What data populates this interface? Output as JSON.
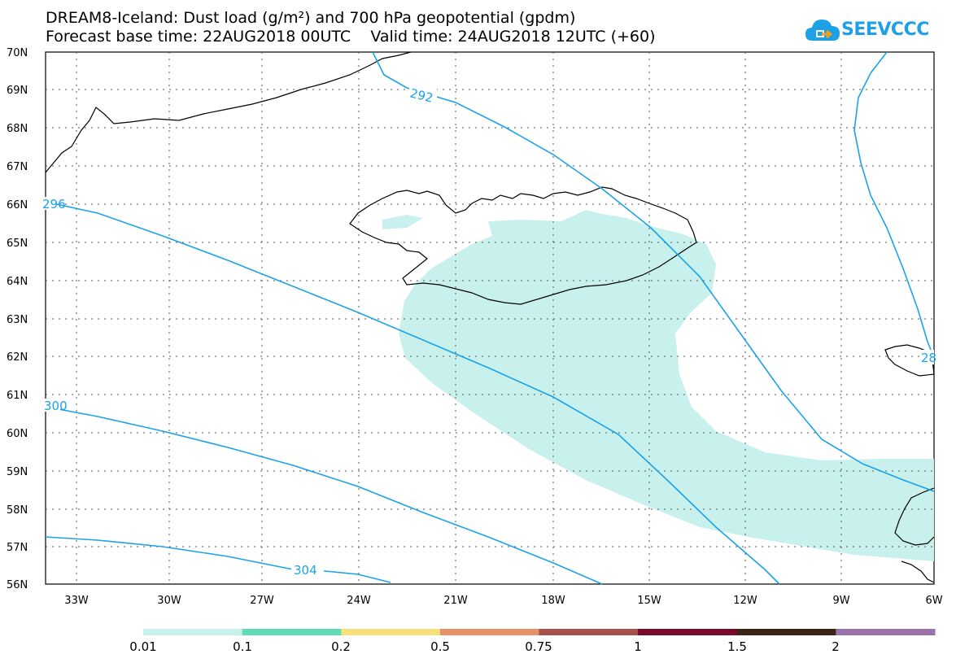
{
  "header": {
    "title_line1": "DREAM8-Iceland: Dust load (g/m²) and 700 hPa geopotential (gpdm)",
    "title_line2": "Forecast base time: 22AUG2018 00UTC    Valid time: 24AUG2018 12UTC (+60)"
  },
  "logo": {
    "text": "SEEVCCC",
    "icon": "cloud-icon",
    "color": "#1ea0e6"
  },
  "map": {
    "latitudes": [
      "70N",
      "69N",
      "68N",
      "67N",
      "66N",
      "65N",
      "64N",
      "63N",
      "62N",
      "61N",
      "60N",
      "59N",
      "58N",
      "57N",
      "56N"
    ],
    "longitudes": [
      "33W",
      "30W",
      "27W",
      "24W",
      "21W",
      "18W",
      "15W",
      "12W",
      "9W",
      "6W"
    ],
    "contour_color": "#1aa3e8",
    "dust_fill_color": "#c8f0ec",
    "contour_labels": [
      "296",
      "292",
      "300",
      "304",
      "28"
    ]
  },
  "colorbar": {
    "colors": [
      "#c8f0ec",
      "#5fdcb4",
      "#f5e07a",
      "#e8906a",
      "#a8504a",
      "#7a0a2a",
      "#3a2418",
      "#9a72a8"
    ],
    "labels": [
      "0.01",
      "0.1",
      "0.2",
      "0.5",
      "0.75",
      "1",
      "1.5",
      "2"
    ]
  }
}
